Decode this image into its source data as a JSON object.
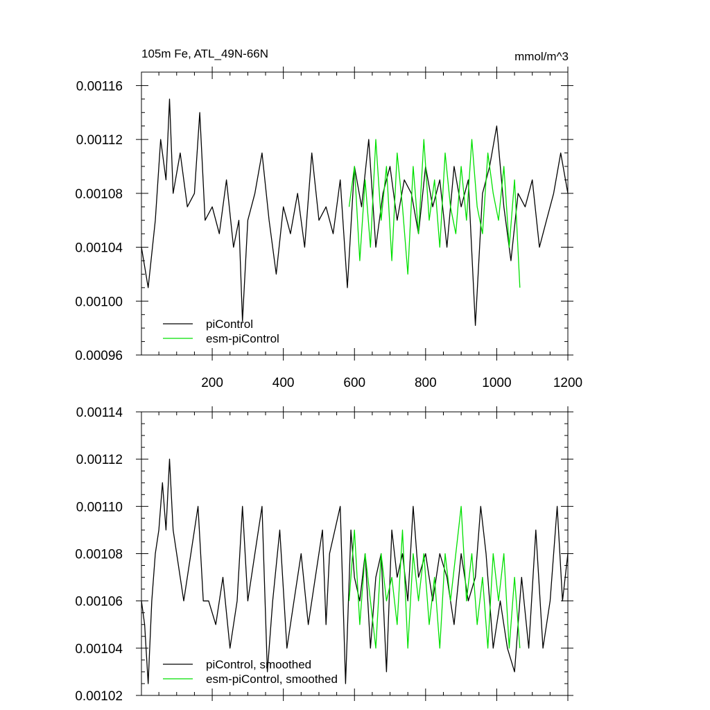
{
  "colors": {
    "piControl": "#000000",
    "esm_piControl": "#00e000",
    "background": "#ffffff"
  },
  "figure": {
    "title_left": "105m Fe, ATL_49N-66N",
    "title_right": "mmol/m^3"
  },
  "chart_data": [
    {
      "type": "line",
      "panel": "top",
      "title": "105m Fe, ATL_49N-66N",
      "units": "mmol/m^3",
      "xlim": [
        1,
        1200
      ],
      "ylim": [
        0.00096,
        0.00117
      ],
      "x_ticks": [
        {
          "value": 200,
          "label": "200"
        },
        {
          "value": 400,
          "label": "400"
        },
        {
          "value": 600,
          "label": "600"
        },
        {
          "value": 800,
          "label": "800"
        },
        {
          "value": 1000,
          "label": "1000"
        },
        {
          "value": 1200,
          "label": "1200"
        }
      ],
      "y_ticks": [
        {
          "value": 0.00096,
          "label": "0.00096"
        },
        {
          "value": 0.001,
          "label": "0.00100"
        },
        {
          "value": 0.00104,
          "label": "0.00104"
        },
        {
          "value": 0.00108,
          "label": "0.00108"
        },
        {
          "value": 0.00112,
          "label": "0.00112"
        },
        {
          "value": 0.00116,
          "label": "0.00116"
        }
      ],
      "legend": {
        "placement": "bottom-left",
        "entries": [
          "piControl",
          "esm-piControl"
        ]
      },
      "series": [
        {
          "name": "piControl",
          "color_key": "piControl",
          "x": [
            1,
            20,
            40,
            55,
            70,
            80,
            90,
            110,
            130,
            150,
            165,
            180,
            200,
            220,
            240,
            260,
            275,
            285,
            300,
            320,
            340,
            360,
            380,
            400,
            420,
            440,
            460,
            480,
            500,
            520,
            540,
            560,
            580,
            600,
            620,
            640,
            660,
            680,
            700,
            720,
            740,
            760,
            780,
            800,
            820,
            840,
            860,
            880,
            900,
            920,
            940,
            960,
            980,
            1000,
            1020,
            1040,
            1060,
            1080,
            1100,
            1120,
            1140,
            1160,
            1180,
            1200
          ],
          "values": [
            0.00104,
            0.00101,
            0.00106,
            0.00112,
            0.00109,
            0.00115,
            0.00108,
            0.00111,
            0.00107,
            0.00108,
            0.00114,
            0.00106,
            0.00107,
            0.00105,
            0.00109,
            0.00104,
            0.00106,
            0.000985,
            0.00106,
            0.00108,
            0.00111,
            0.00106,
            0.00102,
            0.00107,
            0.00105,
            0.00108,
            0.00104,
            0.00111,
            0.00106,
            0.00107,
            0.00105,
            0.00109,
            0.00101,
            0.0011,
            0.00107,
            0.00112,
            0.00104,
            0.00108,
            0.0011,
            0.00106,
            0.00109,
            0.00108,
            0.00105,
            0.0011,
            0.00107,
            0.00109,
            0.00104,
            0.0011,
            0.00107,
            0.00109,
            0.000982,
            0.00108,
            0.0011,
            0.00113,
            0.00107,
            0.00103,
            0.00108,
            0.00107,
            0.00109,
            0.00104,
            0.00106,
            0.00108,
            0.00111,
            0.00108
          ]
        },
        {
          "name": "esm-piControl",
          "color_key": "esm_piControl",
          "x": [
            585,
            600,
            615,
            630,
            645,
            660,
            675,
            690,
            705,
            720,
            735,
            750,
            765,
            780,
            795,
            810,
            825,
            840,
            855,
            870,
            885,
            900,
            915,
            930,
            945,
            960,
            975,
            990,
            1005,
            1020,
            1035,
            1050,
            1065
          ],
          "values": [
            0.00107,
            0.0011,
            0.00103,
            0.00109,
            0.00104,
            0.00112,
            0.00106,
            0.0011,
            0.00103,
            0.00111,
            0.00107,
            0.00102,
            0.0011,
            0.00105,
            0.00112,
            0.00106,
            0.00109,
            0.00104,
            0.00111,
            0.00107,
            0.00105,
            0.0011,
            0.00106,
            0.00112,
            0.00107,
            0.00105,
            0.00111,
            0.00108,
            0.00106,
            0.0011,
            0.00104,
            0.00109,
            0.00101
          ]
        }
      ]
    },
    {
      "type": "line",
      "panel": "bottom",
      "xlim": [
        1,
        1200
      ],
      "ylim": [
        0.00102,
        0.00114
      ],
      "y_ticks": [
        {
          "value": 0.00102,
          "label": "0.00102"
        },
        {
          "value": 0.00104,
          "label": "0.00104"
        },
        {
          "value": 0.00106,
          "label": "0.00106"
        },
        {
          "value": 0.00108,
          "label": "0.00108"
        },
        {
          "value": 0.0011,
          "label": "0.00110"
        },
        {
          "value": 0.00112,
          "label": "0.00112"
        },
        {
          "value": 0.00114,
          "label": "0.00114"
        }
      ],
      "legend": {
        "placement": "bottom-left",
        "entries": [
          "piControl, smoothed",
          "esm-piControl, smoothed"
        ]
      },
      "series": [
        {
          "name": "piControl, smoothed",
          "color_key": "piControl",
          "x": [
            1,
            10,
            20,
            30,
            40,
            50,
            60,
            70,
            80,
            90,
            100,
            110,
            120,
            140,
            160,
            175,
            190,
            210,
            230,
            250,
            270,
            285,
            300,
            320,
            340,
            355,
            370,
            390,
            410,
            430,
            450,
            470,
            490,
            510,
            520,
            530,
            545,
            560,
            575,
            590,
            600,
            615,
            630,
            645,
            660,
            675,
            690,
            705,
            720,
            735,
            750,
            765,
            780,
            800,
            820,
            840,
            860,
            880,
            900,
            920,
            940,
            955,
            970,
            990,
            1010,
            1030,
            1050,
            1070,
            1090,
            1110,
            1130,
            1150,
            1170,
            1185,
            1200
          ],
          "values": [
            0.00106,
            0.00105,
            0.001025,
            0.00106,
            0.00108,
            0.00109,
            0.00111,
            0.00109,
            0.00112,
            0.00109,
            0.00108,
            0.00107,
            0.00106,
            0.00108,
            0.0011,
            0.00106,
            0.00106,
            0.00105,
            0.00107,
            0.00104,
            0.00106,
            0.0011,
            0.00106,
            0.00108,
            0.0011,
            0.00103,
            0.00106,
            0.00109,
            0.00104,
            0.00106,
            0.00108,
            0.00105,
            0.00107,
            0.00109,
            0.00105,
            0.00108,
            0.00109,
            0.0011,
            0.001025,
            0.00109,
            0.00107,
            0.00106,
            0.00108,
            0.00104,
            0.00107,
            0.00108,
            0.00103,
            0.00109,
            0.00107,
            0.00108,
            0.00106,
            0.0011,
            0.00107,
            0.00108,
            0.00106,
            0.00108,
            0.00107,
            0.00105,
            0.00108,
            0.00106,
            0.00107,
            0.0011,
            0.00108,
            0.00104,
            0.00106,
            0.00104,
            0.00103,
            0.00107,
            0.00104,
            0.00109,
            0.00104,
            0.00106,
            0.0011,
            0.00106,
            0.00108
          ]
        },
        {
          "name": "esm-piControl, smoothed",
          "color_key": "esm_piControl",
          "x": [
            585,
            600,
            615,
            630,
            645,
            660,
            675,
            690,
            705,
            720,
            735,
            750,
            765,
            780,
            795,
            810,
            825,
            840,
            855,
            870,
            885,
            900,
            915,
            930,
            945,
            960,
            975,
            990,
            1005,
            1020,
            1035,
            1050,
            1065
          ],
          "values": [
            0.00106,
            0.00109,
            0.00105,
            0.00108,
            0.00106,
            0.00104,
            0.00108,
            0.00106,
            0.00107,
            0.00105,
            0.00109,
            0.00104,
            0.00108,
            0.00106,
            0.00108,
            0.00105,
            0.00107,
            0.00104,
            0.00108,
            0.00106,
            0.00108,
            0.0011,
            0.00106,
            0.00108,
            0.00105,
            0.00107,
            0.00104,
            0.00108,
            0.00106,
            0.00108,
            0.00104,
            0.00107,
            0.00104
          ]
        }
      ]
    }
  ]
}
